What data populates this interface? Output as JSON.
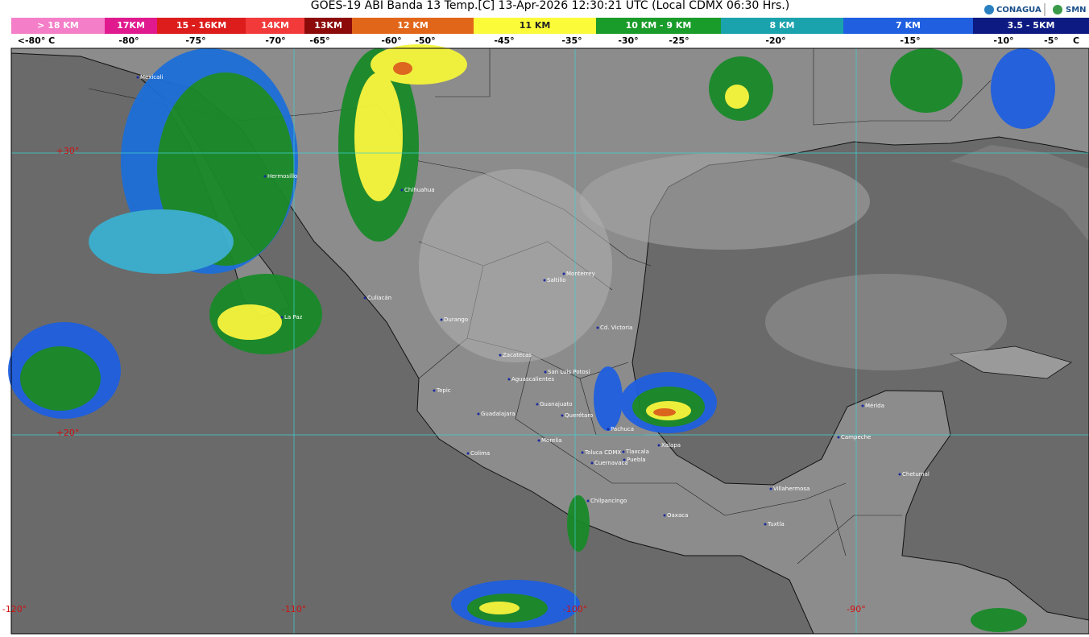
{
  "header": {
    "title": "GOES-19 ABI Banda 13 Temp.[C] 13-Apr-2026 12:30:21 UTC (Local CDMX  06:30 Hrs.)",
    "logos": [
      "CONAGUA",
      "SMN"
    ]
  },
  "legend": {
    "heights": [
      {
        "label": "> 18 KM",
        "color": "#f47fc8"
      },
      {
        "label": "17KM",
        "color": "#e01a8e"
      },
      {
        "label": "15 - 16KM",
        "color": "#dd1c1c"
      },
      {
        "label": "14KM",
        "color": "#f23a3a"
      },
      {
        "label": "13KM",
        "color": "#8c0a0a"
      },
      {
        "label": "12 KM",
        "color": "#e2661a"
      },
      {
        "label": "11 KM",
        "color": "#fbfb3a"
      },
      {
        "label": "10 KM - 9 KM",
        "color": "#1a9c2a"
      },
      {
        "label": "8 KM",
        "color": "#1aa3ad"
      },
      {
        "label": "7 KM",
        "color": "#1f5fe0"
      },
      {
        "label": "3.5 - 5KM",
        "color": "#0c1a82"
      }
    ],
    "temps": [
      "<-80° C",
      "-80°",
      "-75°",
      "-70°",
      "-65°",
      "-60°",
      "-50°",
      "-45°",
      "-35°",
      "-30°",
      "-25°",
      "-20°",
      "-15°",
      "-10°",
      "-5°",
      "C"
    ]
  },
  "grid": {
    "lat": [
      "+30°",
      "+20°"
    ],
    "lon": [
      "-120°",
      "-110°",
      "-100°",
      "-90°"
    ]
  },
  "cities": [
    "Mexicali",
    "Hermosillo",
    "Chihuahua",
    "Culiacán",
    "La Paz",
    "Durango",
    "Saltillo",
    "Monterrey",
    "Cd. Victoria",
    "Zacatecas",
    "San Luis Potosí",
    "Aguascalientes",
    "Tepic",
    "Guanajuato",
    "Guadalajara",
    "Querétaro",
    "Pachuca",
    "Xalapa",
    "Morelia",
    "Colima",
    "Toluca CDMX",
    "Tlaxcala",
    "Puebla",
    "Cuernavaca",
    "Chilpancingo",
    "Oaxaca",
    "Villahermosa",
    "Tuxtla",
    "Mérida",
    "Campeche",
    "Chetumal"
  ]
}
